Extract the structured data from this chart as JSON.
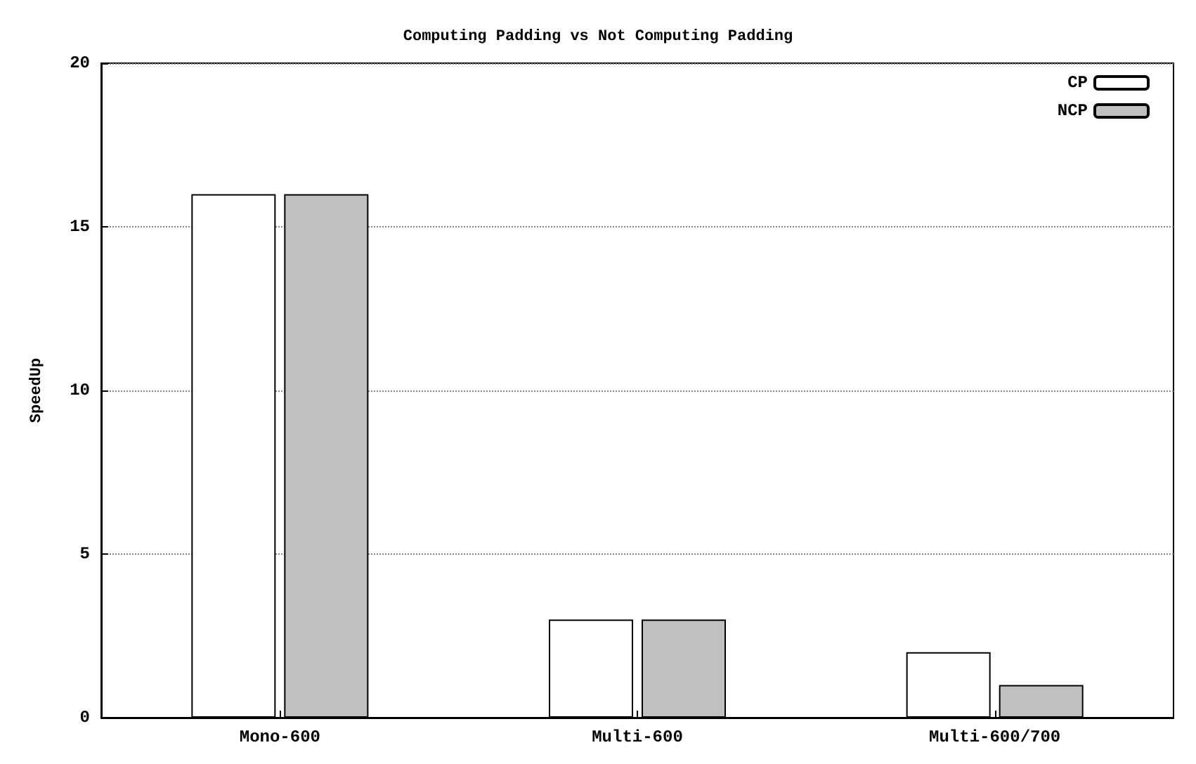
{
  "chart_data": {
    "type": "bar",
    "title": "Computing Padding vs Not Computing Padding",
    "ylabel": "SpeedUp",
    "categories": [
      "Mono-600",
      "Multi-600",
      "Multi-600/700"
    ],
    "series": [
      {
        "name": "CP",
        "color": "#ffffff",
        "values": [
          16,
          3,
          2
        ]
      },
      {
        "name": "NCP",
        "color": "#c0c0c0",
        "values": [
          16,
          3,
          1
        ]
      }
    ],
    "ylim": [
      0,
      20
    ],
    "yticks": [
      0,
      5,
      10,
      15,
      20
    ],
    "grid": "y",
    "legend": "top right"
  }
}
